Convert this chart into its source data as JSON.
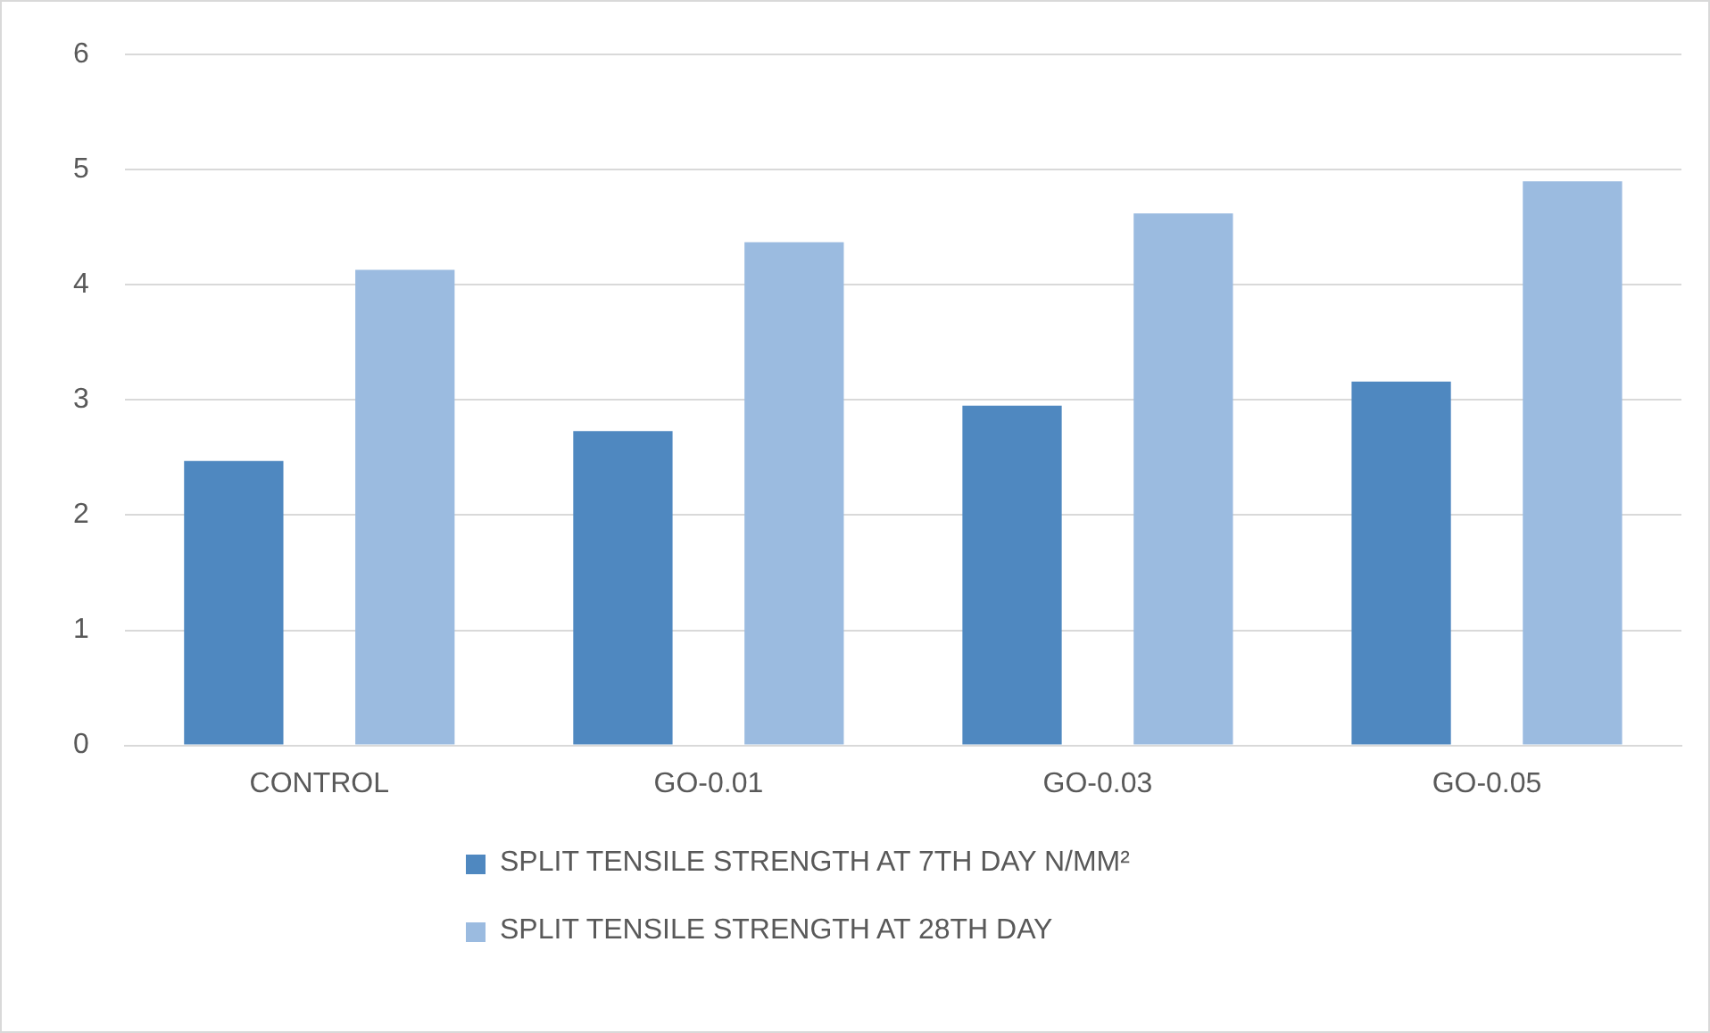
{
  "chart_data": {
    "type": "bar",
    "categories": [
      "CONTROL",
      "GO-0.01",
      "GO-0.03",
      "GO-0.05"
    ],
    "series": [
      {
        "name": "SPLIT TENSILE STRENGTH AT 7TH DAY N/MM²",
        "color": "#4f88c0",
        "values": [
          2.47,
          2.73,
          2.95,
          3.16
        ]
      },
      {
        "name": "SPLIT TENSILE STRENGTH AT 28TH DAY",
        "color": "#9bbbe0",
        "values": [
          4.13,
          4.37,
          4.62,
          4.9
        ]
      }
    ],
    "ylim": [
      0,
      6
    ],
    "yticks": [
      0,
      1,
      2,
      3,
      4,
      5,
      6
    ],
    "grid": "y",
    "legend": "bottom"
  }
}
